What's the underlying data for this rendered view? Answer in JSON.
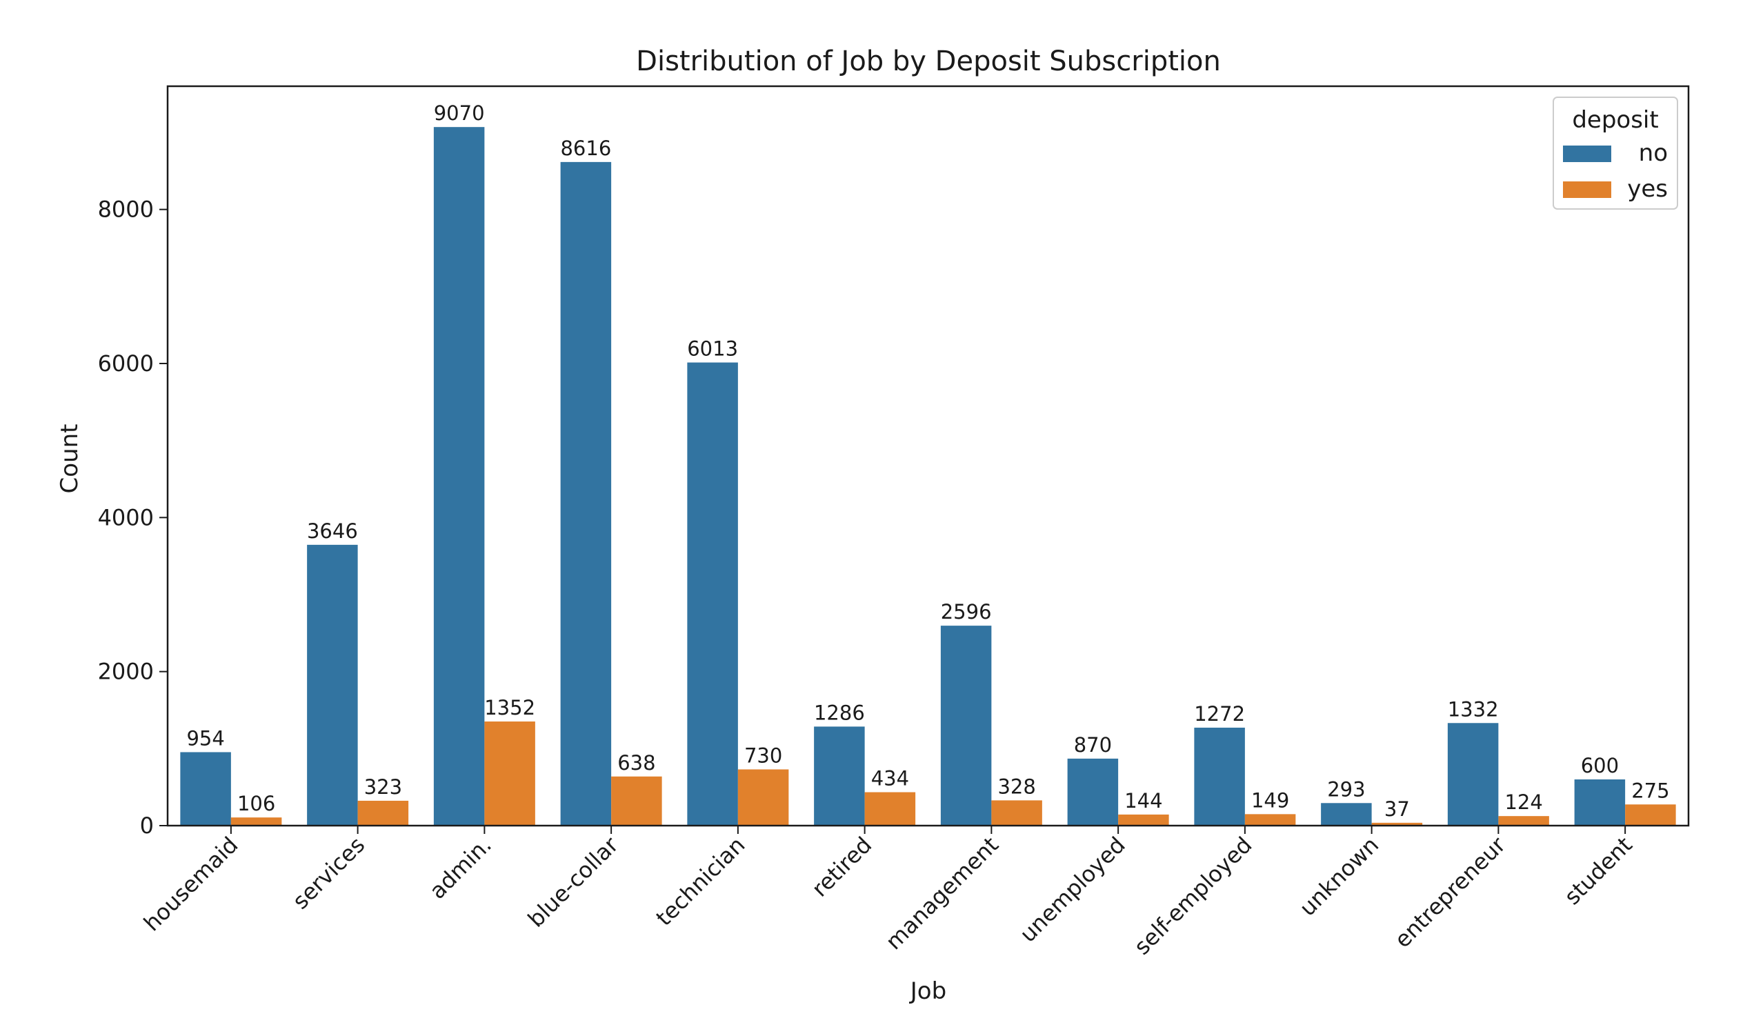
{
  "chart_data": {
    "type": "bar",
    "title": "Distribution of Job by Deposit Subscription",
    "xlabel": "Job",
    "ylabel": "Count",
    "categories": [
      "housemaid",
      "services",
      "admin.",
      "blue-collar",
      "technician",
      "retired",
      "management",
      "unemployed",
      "self-employed",
      "unknown",
      "entrepreneur",
      "student"
    ],
    "series": [
      {
        "name": "no",
        "color": "#3274a1",
        "values": [
          954,
          3646,
          9070,
          8616,
          6013,
          1286,
          2596,
          870,
          1272,
          293,
          1332,
          600
        ]
      },
      {
        "name": "yes",
        "color": "#e1812c",
        "values": [
          106,
          323,
          1352,
          638,
          730,
          434,
          328,
          144,
          149,
          37,
          124,
          275
        ]
      }
    ],
    "yticks": [
      0,
      2000,
      4000,
      6000,
      8000
    ],
    "ylim": [
      0,
      9600
    ],
    "legend": {
      "title": "deposit",
      "placement": "top-right"
    },
    "grid": false,
    "x_tick_rotation_deg": 45
  }
}
